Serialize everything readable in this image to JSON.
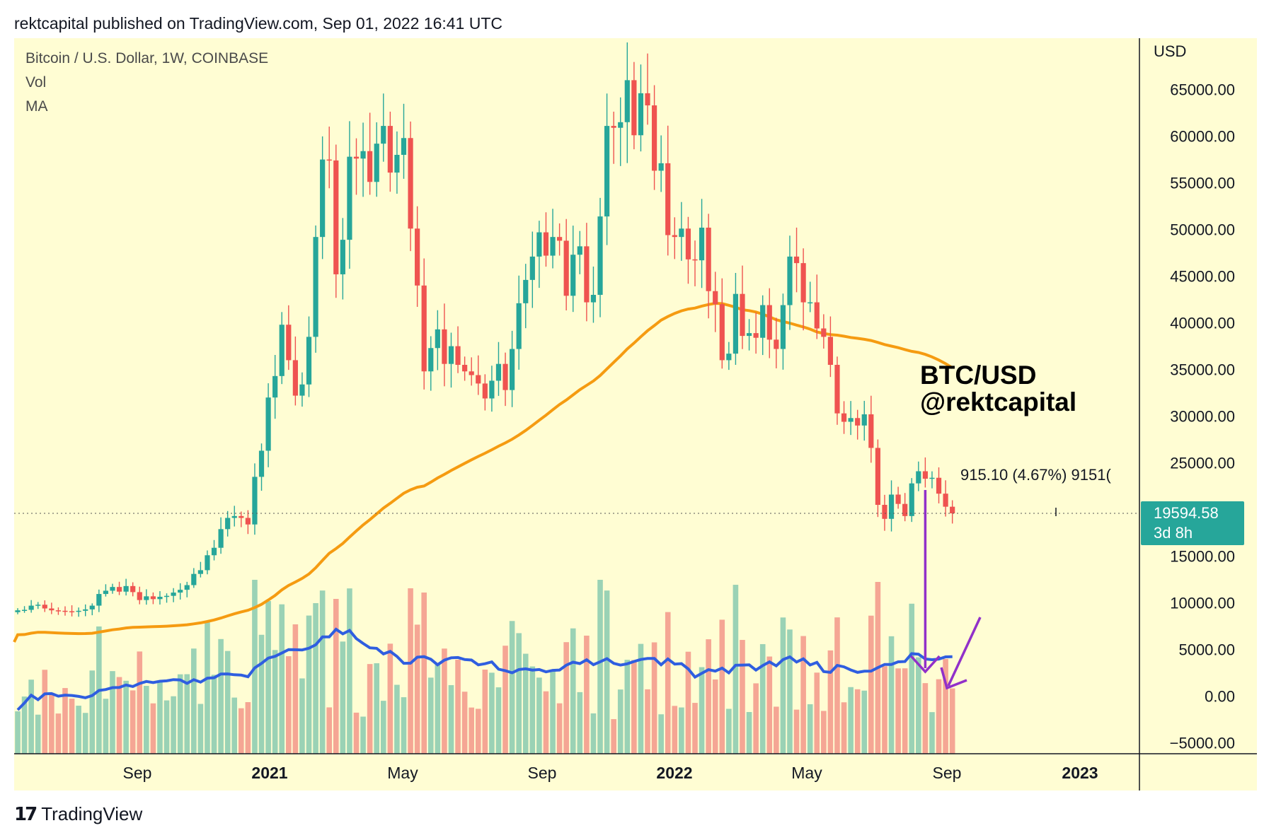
{
  "header": {
    "publish_line": "rektcapital published on TradingView.com, Sep 01, 2022 16:41 UTC"
  },
  "legend": {
    "symbol": "Bitcoin / U.S. Dollar, 1W, COINBASE",
    "vol": "Vol",
    "ma": "MA"
  },
  "watermark": {
    "line1": "BTC/USD",
    "line2": "@rektcapital"
  },
  "measure_label": "915.10 (4.67%) 9151(",
  "price_badge": {
    "price": "19594.58",
    "countdown": "3d 8h"
  },
  "axis": {
    "currency": "USD",
    "price_ticks": [
      "65000.00",
      "60000.00",
      "55000.00",
      "50000.00",
      "45000.00",
      "40000.00",
      "35000.00",
      "30000.00",
      "25000.00",
      "20000.00",
      "15000.00",
      "10000.00",
      "5000.00",
      "0.00",
      "−5000.00"
    ],
    "time_ticks": [
      {
        "label": "Sep",
        "bold": false
      },
      {
        "label": "2021",
        "bold": true
      },
      {
        "label": "May",
        "bold": false
      },
      {
        "label": "Sep",
        "bold": false
      },
      {
        "label": "2022",
        "bold": true
      },
      {
        "label": "May",
        "bold": false
      },
      {
        "label": "Sep",
        "bold": false
      },
      {
        "label": "2023",
        "bold": true
      }
    ]
  },
  "footer": {
    "brand": "TradingView",
    "logo": "17"
  },
  "colors": {
    "background": "#fffdd3",
    "up": "#26a69a",
    "down": "#ef5350",
    "vol_up": "#9ad2b5",
    "vol_down": "#f5a694",
    "ma_long": "#f59b11",
    "ma_vol": "#2f5ee0",
    "annotation": "#9130c9",
    "badge": "#26a69a"
  },
  "chart_data": {
    "type": "candlestick",
    "title": "Bitcoin / U.S. Dollar, 1W, COINBASE",
    "timeframe": "1W",
    "y_unit": "USD",
    "ylim": [
      -5000,
      70000
    ],
    "last_price": 19594.58,
    "start_week": "2020-06-29",
    "end_week": "2022-08-29",
    "closes": [
      9200,
      9250,
      9700,
      9800,
      9400,
      9200,
      9150,
      9100,
      9050,
      9150,
      9300,
      9700,
      10950,
      11300,
      11700,
      11200,
      11800,
      11150,
      10300,
      10700,
      10400,
      10650,
      10750,
      11100,
      11400,
      11900,
      13100,
      13500,
      15100,
      15900,
      17900,
      19100,
      19300,
      19100,
      18400,
      23500,
      26300,
      32000,
      34300,
      39800,
      36000,
      32200,
      33400,
      38500,
      49200,
      57500,
      57400,
      45200,
      48900,
      57800,
      57600,
      58400,
      55100,
      59200,
      61100,
      56100,
      58000,
      59800,
      50100,
      44000,
      34800,
      37300,
      39300,
      35600,
      37500,
      35500,
      34800,
      34400,
      33500,
      31900,
      33800,
      35600,
      32800,
      37200,
      42100,
      44600,
      47100,
      49700,
      47200,
      49200,
      48800,
      42900,
      47300,
      48200,
      42200,
      43000,
      51400,
      61100,
      60900,
      61500,
      66000,
      60100,
      64600,
      63300,
      56300,
      57100,
      49400,
      49200,
      50100,
      46800,
      46700,
      50200,
      43400,
      42000,
      36000,
      36700,
      43100,
      38600,
      38900,
      38400,
      41900,
      38200,
      37200,
      41900,
      47100,
      46400,
      42200,
      42200,
      39400,
      38500,
      35500,
      30300,
      29400,
      29800,
      29000,
      30200,
      26600,
      20500,
      19000,
      21600,
      20600,
      19300,
      22800,
      24100,
      23300,
      23400,
      21700,
      20300,
      19590
    ],
    "volume_moving_average": "blue line over volume pane",
    "long_moving_average": "orange line over price pane",
    "annotations": [
      "purple vertical arrow down toward volume",
      "purple arrow pointing to last volume bar"
    ]
  }
}
